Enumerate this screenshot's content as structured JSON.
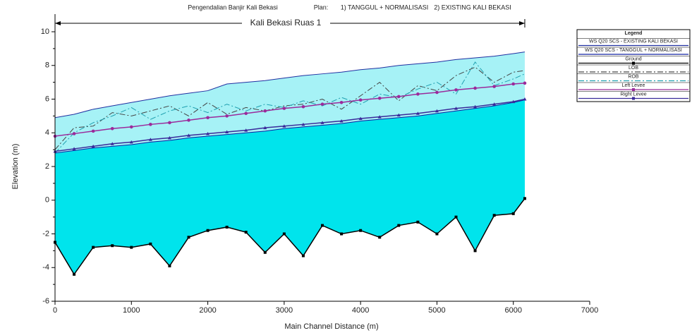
{
  "chart_data": {
    "type": "line",
    "title": [
      "Pengendalian Banjir Kali Bekasi",
      "Plan:",
      "1) TANGGUL + NORMALISASI",
      "2) EXISTING KALI BEKASI"
    ],
    "reach": {
      "label": "Kali Bekasi Ruas 1",
      "x": [
        0,
        6150
      ]
    },
    "x_label": "Main Channel Distance (m)",
    "y_label": "Elevation (m)",
    "xlim": [
      0,
      7000
    ],
    "xticks": [
      0,
      1000,
      2000,
      3000,
      4000,
      5000,
      6000,
      7000
    ],
    "ylim": [
      -6,
      10
    ],
    "yticks": [
      -6,
      -4,
      -2,
      0,
      2,
      4,
      6,
      8,
      10
    ],
    "legend_title": "Legend",
    "legend_position": "right",
    "x": [
      0,
      250,
      500,
      750,
      1000,
      1250,
      1500,
      1750,
      2000,
      2250,
      2500,
      2750,
      3000,
      3250,
      3500,
      3750,
      4000,
      4250,
      4500,
      4750,
      5000,
      5250,
      5500,
      5750,
      6000,
      6150
    ],
    "series": [
      {
        "name": "WS  Q20 SCS - EXISTING KALI BEKASI",
        "color": "#2030a0",
        "fill": "#a6f2f6",
        "style": "solid",
        "marker": "none",
        "values": [
          4.9,
          5.1,
          5.4,
          5.6,
          5.8,
          6.0,
          6.2,
          6.35,
          6.5,
          6.9,
          7.0,
          7.1,
          7.25,
          7.4,
          7.5,
          7.6,
          7.75,
          7.85,
          8.0,
          8.1,
          8.2,
          8.35,
          8.45,
          8.55,
          8.7,
          8.8
        ]
      },
      {
        "name": "WS  Q20 SCS - TANGGUL + NORMALISASI",
        "color": "#1020a0",
        "fill": "#00e4ec",
        "style": "solid",
        "marker": "none",
        "values": [
          2.8,
          2.95,
          3.1,
          3.2,
          3.3,
          3.45,
          3.55,
          3.7,
          3.8,
          3.9,
          4.0,
          4.1,
          4.25,
          4.35,
          4.45,
          4.55,
          4.7,
          4.8,
          4.9,
          5.0,
          5.15,
          5.3,
          5.45,
          5.6,
          5.8,
          5.95
        ]
      },
      {
        "name": "Ground",
        "color": "#000000",
        "style": "solid",
        "marker": "square",
        "values": [
          -2.5,
          -4.4,
          -2.8,
          -2.7,
          -2.8,
          -2.6,
          -3.9,
          -2.2,
          -1.8,
          -1.6,
          -1.9,
          -3.1,
          -2.0,
          -3.3,
          -1.5,
          -2.0,
          -1.8,
          -2.2,
          -1.5,
          -1.3,
          -2.0,
          -1.0,
          -3.0,
          -0.9,
          -0.8,
          0.1
        ]
      },
      {
        "name": "LOB",
        "color": "#444444",
        "style": "dashdot",
        "marker": "none",
        "values": [
          3.0,
          4.3,
          4.4,
          5.2,
          5.0,
          5.3,
          5.6,
          5.0,
          5.8,
          5.1,
          5.5,
          5.3,
          5.6,
          5.7,
          6.0,
          5.4,
          6.2,
          7.0,
          5.9,
          6.8,
          6.5,
          7.4,
          7.9,
          7.0,
          7.6,
          7.7
        ]
      },
      {
        "name": "ROB",
        "color": "#20a0b0",
        "style": "dashdot",
        "marker": "none",
        "values": [
          2.8,
          4.0,
          4.6,
          5.0,
          5.5,
          4.8,
          5.3,
          5.6,
          5.2,
          5.7,
          5.3,
          5.7,
          5.5,
          5.9,
          5.6,
          6.1,
          5.7,
          6.3,
          6.1,
          6.6,
          7.0,
          6.3,
          8.2,
          6.8,
          7.2,
          7.5
        ]
      },
      {
        "name": "Left Levee",
        "color": "#9b2a9b",
        "style": "solid",
        "marker": "circle",
        "values": [
          3.8,
          3.95,
          4.1,
          4.25,
          4.35,
          4.5,
          4.6,
          4.75,
          4.9,
          5.0,
          5.15,
          5.3,
          5.45,
          5.55,
          5.7,
          5.8,
          5.95,
          6.05,
          6.15,
          6.3,
          6.4,
          6.55,
          6.65,
          6.75,
          6.9,
          6.95
        ]
      },
      {
        "name": "Right Levee",
        "color": "#3a2a9a",
        "style": "solid",
        "marker": "triangle",
        "values": [
          2.9,
          3.05,
          3.2,
          3.35,
          3.45,
          3.6,
          3.7,
          3.85,
          3.95,
          4.05,
          4.15,
          4.3,
          4.4,
          4.5,
          4.6,
          4.7,
          4.85,
          4.95,
          5.05,
          5.15,
          5.3,
          5.45,
          5.55,
          5.7,
          5.85,
          6.0
        ]
      }
    ]
  }
}
